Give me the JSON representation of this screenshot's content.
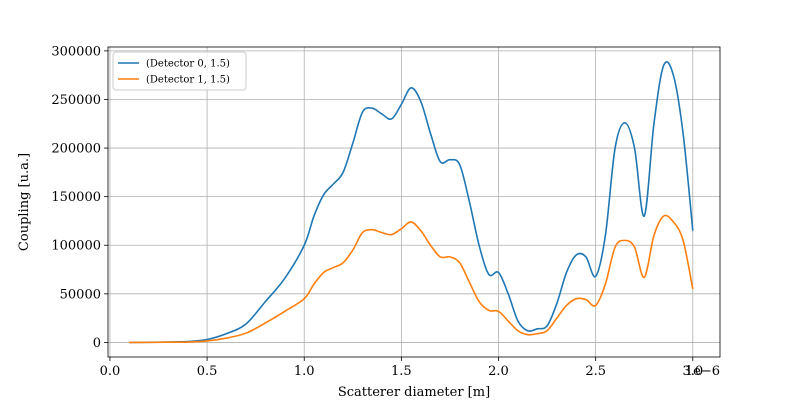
{
  "chart_data": {
    "type": "line",
    "xlabel": "Scatterer diameter [m]",
    "ylabel": "Coupling [u.a.]",
    "x_offset_label": "1e−6",
    "x": [
      0.1,
      0.2,
      0.3,
      0.4,
      0.5,
      0.6,
      0.7,
      0.8,
      0.9,
      1.0,
      1.05,
      1.1,
      1.15,
      1.2,
      1.25,
      1.3,
      1.35,
      1.4,
      1.45,
      1.5,
      1.55,
      1.6,
      1.65,
      1.7,
      1.75,
      1.8,
      1.85,
      1.9,
      1.95,
      2.0,
      2.05,
      2.1,
      2.15,
      2.2,
      2.25,
      2.3,
      2.35,
      2.4,
      2.45,
      2.5,
      2.55,
      2.6,
      2.65,
      2.7,
      2.75,
      2.8,
      2.85,
      2.9,
      2.95,
      3.0
    ],
    "series": [
      {
        "name": "(Detector 0, 1.5)",
        "color": "#1f77b4",
        "values": [
          0,
          100,
          400,
          900,
          3000,
          9000,
          19000,
          42000,
          66000,
          100000,
          130000,
          152000,
          163000,
          175000,
          205000,
          237000,
          241000,
          235000,
          230000,
          245000,
          262000,
          248000,
          215000,
          186000,
          188000,
          183000,
          145000,
          100000,
          70000,
          72000,
          50000,
          22000,
          12000,
          14000,
          17000,
          40000,
          72000,
          90000,
          88000,
          68000,
          110000,
          200000,
          226000,
          200000,
          130000,
          225000,
          285000,
          275000,
          215000,
          115000
        ]
      },
      {
        "name": "(Detector 1, 1.5)",
        "color": "#ff7f0e",
        "values": [
          0,
          50,
          200,
          400,
          1500,
          4500,
          9500,
          20000,
          32000,
          45000,
          60000,
          72000,
          77000,
          82000,
          95000,
          113000,
          116000,
          113000,
          111000,
          117000,
          124000,
          115000,
          100000,
          88000,
          88000,
          82000,
          62000,
          42000,
          33000,
          32000,
          22000,
          12000,
          8000,
          9000,
          12000,
          25000,
          38000,
          45000,
          44000,
          38000,
          60000,
          98000,
          105000,
          98000,
          67000,
          110000,
          130000,
          124000,
          105000,
          55000
        ]
      }
    ],
    "xlim": [
      -0.01,
      3.14
    ],
    "xticks": [
      {
        "value": 0,
        "label": "0.0"
      },
      0.5,
      {
        "value": 1,
        "label": "1.0"
      },
      1.5,
      {
        "value": 2,
        "label": "2.0"
      },
      2.5,
      {
        "value": 3,
        "label": "3.0"
      }
    ],
    "ylim": [
      -15000,
      304000
    ],
    "yticks": [
      0,
      50000,
      100000,
      150000,
      200000,
      250000,
      300000
    ],
    "grid": true,
    "legend": "upper-left"
  }
}
